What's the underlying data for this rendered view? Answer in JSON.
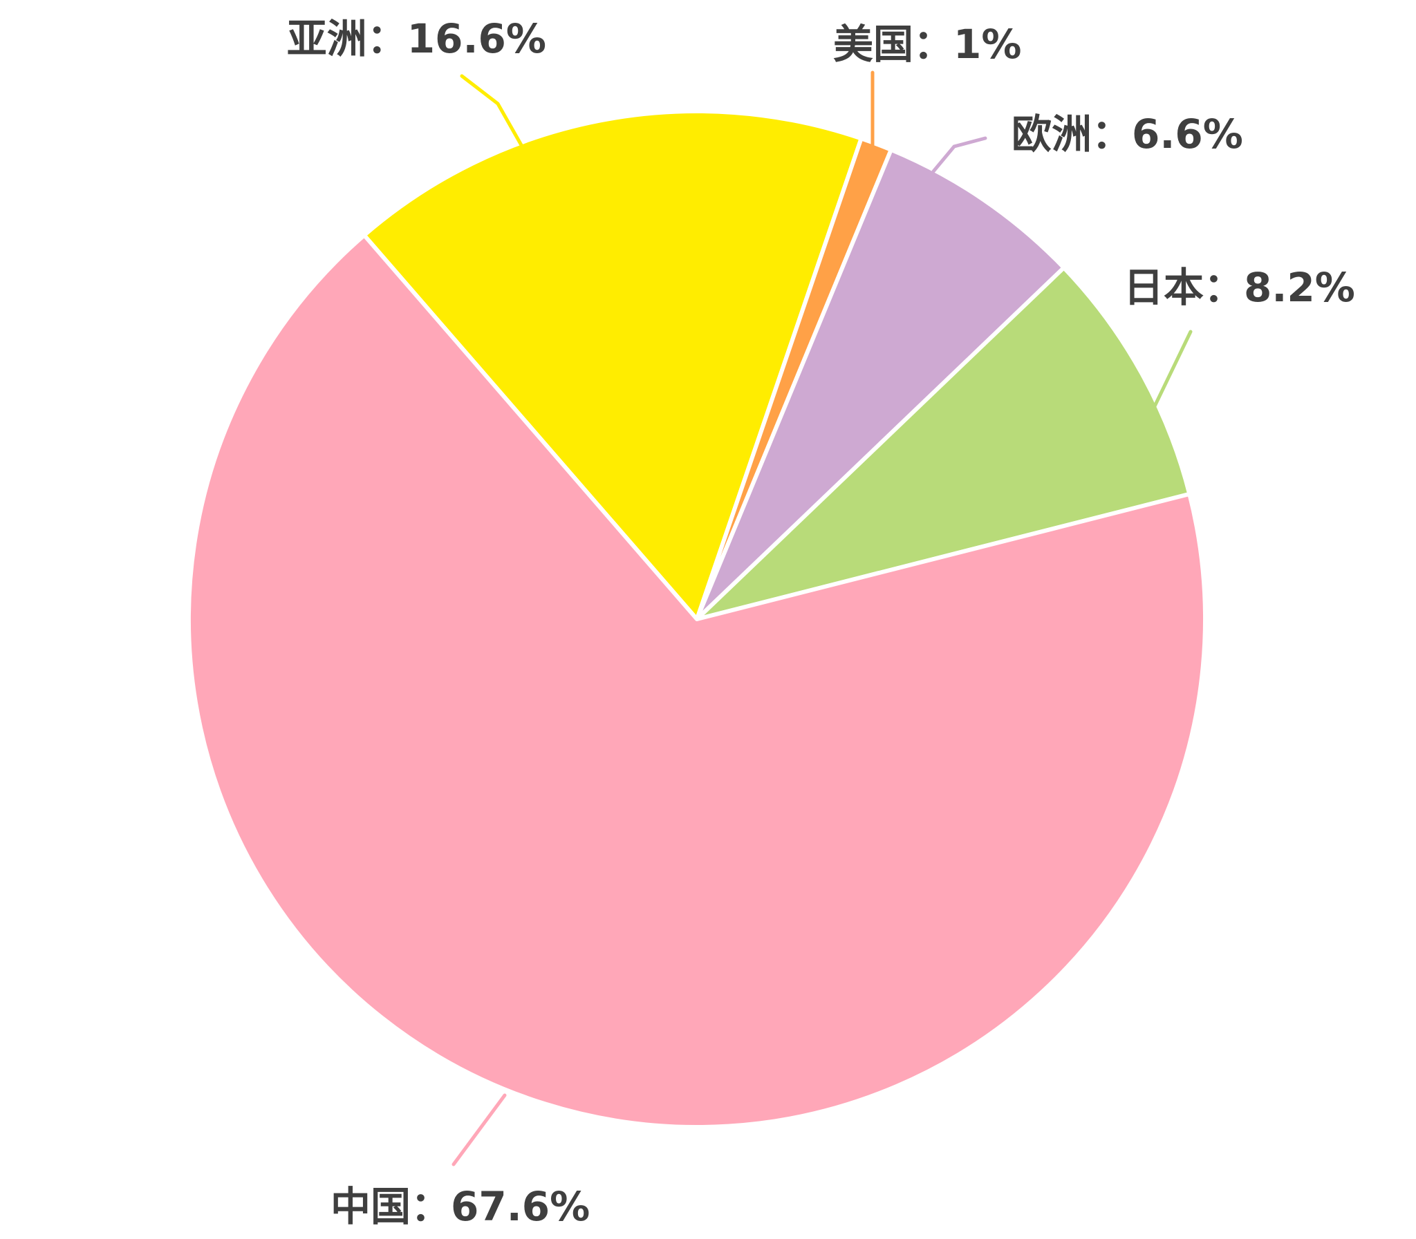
{
  "chart_data": {
    "type": "pie",
    "start_angle_deg": -40.9,
    "direction": "clockwise",
    "separator": "：",
    "slices": [
      {
        "label": "亚洲",
        "value": 16.6,
        "display": "16.6%",
        "color": "#FFED00"
      },
      {
        "label": "美国",
        "value": 1,
        "display": "1%",
        "color": "#FFA147"
      },
      {
        "label": "欧洲",
        "value": 6.6,
        "display": "6.6%",
        "color": "#CEA9D2"
      },
      {
        "label": "日本",
        "value": 8.2,
        "display": "8.2%",
        "color": "#B8DB79"
      },
      {
        "label": "中国",
        "value": 67.6,
        "display": "67.6%",
        "color": "#FFA7B8"
      }
    ]
  }
}
